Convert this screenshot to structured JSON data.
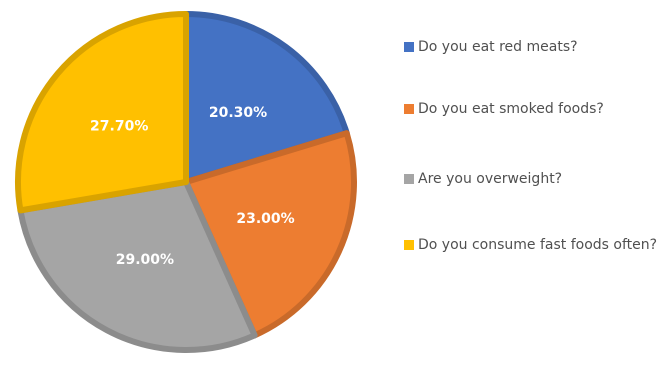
{
  "chart_data": {
    "type": "pie",
    "title": "",
    "categories": [
      "Do you eat red meats?",
      "Do you eat smoked foods?",
      "Are you overweight?",
      "Do you consume fast foods often?"
    ],
    "values": [
      20.3,
      23.0,
      29.0,
      27.7
    ],
    "data_labels": [
      "20.30%",
      "23.00%",
      "29.00%",
      "27.70%"
    ],
    "colors": [
      "#4472C4",
      "#ED7D31",
      "#A5A5A5",
      "#FFC000"
    ],
    "legend_position": "right",
    "start_angle_deg": 0,
    "direction": "clockwise"
  }
}
